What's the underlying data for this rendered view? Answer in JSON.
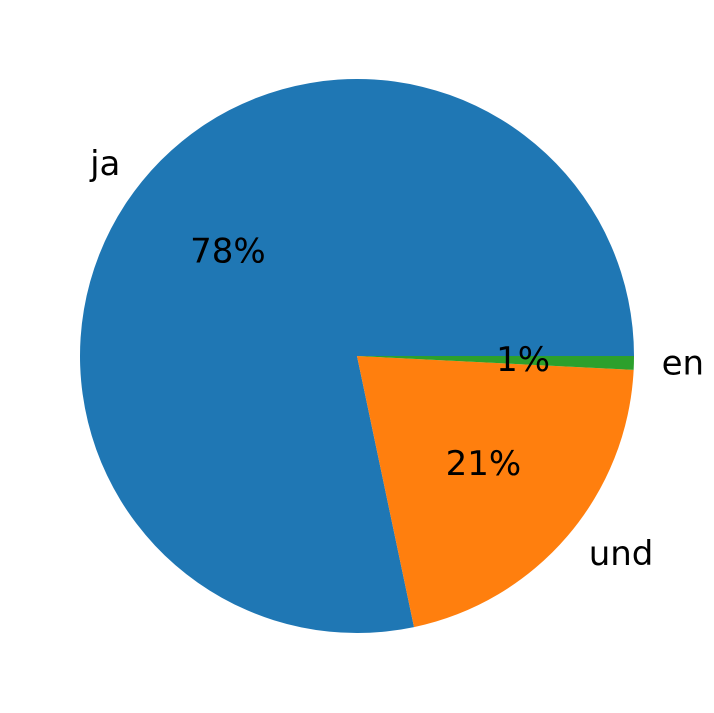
{
  "chart_data": {
    "type": "pie",
    "labels": [
      "ja",
      "und",
      "en"
    ],
    "values": [
      78.3,
      20.9,
      0.8
    ],
    "percent_labels": [
      "78%",
      "21%",
      "1%"
    ],
    "colors": [
      "#1f77b4",
      "#ff7f0e",
      "#2ca02c"
    ],
    "start_angle_deg": 0,
    "direction": "counterclockwise",
    "legend": "none"
  }
}
